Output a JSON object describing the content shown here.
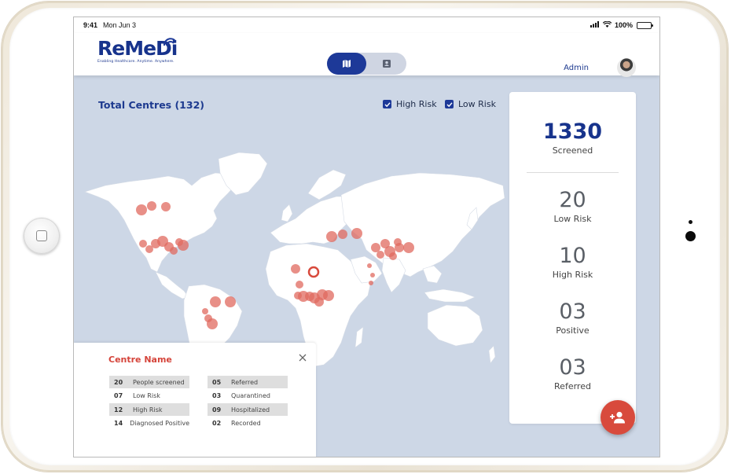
{
  "status_bar": {
    "time": "9:41",
    "date": "Mon Jun 3",
    "battery": "100%"
  },
  "header": {
    "logo_text": "ReMeDi",
    "logo_tagline": "Enabling Healthcare. Anytime. Anywhere.",
    "view_toggle": {
      "selected": "map",
      "options": [
        "map-icon",
        "contact-card-icon"
      ]
    },
    "user_name": "Admin"
  },
  "map": {
    "total_label": "Total Centres (132)",
    "filters": [
      {
        "label": "High Risk",
        "checked": true
      },
      {
        "label": "Low Risk",
        "checked": true
      }
    ]
  },
  "stats": {
    "screened": {
      "value": "1330",
      "label": "Screened"
    },
    "low_risk": {
      "value": "20",
      "label": "Low Risk"
    },
    "high_risk": {
      "value": "10",
      "label": "High Risk"
    },
    "positive": {
      "value": "03",
      "label": "Positive"
    },
    "referred": {
      "value": "03",
      "label": "Referred"
    }
  },
  "centre_popup": {
    "title": "Centre Name",
    "left_rows": [
      {
        "num": "20",
        "label": "People screened"
      },
      {
        "num": "07",
        "label": "Low Risk"
      },
      {
        "num": "12",
        "label": "High Risk"
      },
      {
        "num": "14",
        "label": "Diagnosed Positive"
      }
    ],
    "right_rows": [
      {
        "num": "05",
        "label": "Referred"
      },
      {
        "num": "03",
        "label": "Quarantined"
      },
      {
        "num": "09",
        "label": "Hospitalized"
      },
      {
        "num": "02",
        "label": "Recorded"
      }
    ]
  },
  "colors": {
    "brand": "#1d3998",
    "accent": "#d84a3c",
    "map_bg": "#cdd7e6",
    "land": "#ffffff"
  },
  "fab_icon": "add-person-icon"
}
